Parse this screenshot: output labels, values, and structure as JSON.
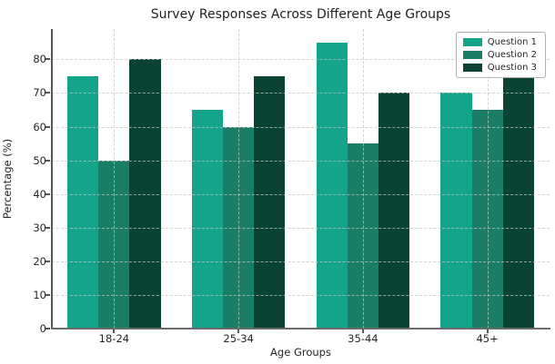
{
  "chart_data": {
    "type": "bar",
    "title": "Survey Responses Across Different Age Groups",
    "xlabel": "Age Groups",
    "ylabel": "Percentage (%)",
    "categories": [
      "18-24",
      "25-34",
      "35-44",
      "45+"
    ],
    "series": [
      {
        "name": "Question 1",
        "color": "#14a489",
        "values": [
          75,
          65,
          85,
          70
        ]
      },
      {
        "name": "Question 2",
        "color": "#1a7d66",
        "values": [
          50,
          60,
          55,
          65
        ]
      },
      {
        "name": "Question 3",
        "color": "#0a4334",
        "values": [
          80,
          75,
          70,
          75
        ]
      }
    ],
    "ylim": [
      0,
      89
    ],
    "yticks": [
      0,
      10,
      20,
      30,
      40,
      50,
      60,
      70,
      80
    ],
    "grid": "dashed",
    "grid_on_top": true,
    "legend_position": "top-right",
    "spines": [
      "left",
      "bottom"
    ],
    "background_color": "#ffffff",
    "axis_color": "#565656",
    "text_color": "#262626"
  }
}
